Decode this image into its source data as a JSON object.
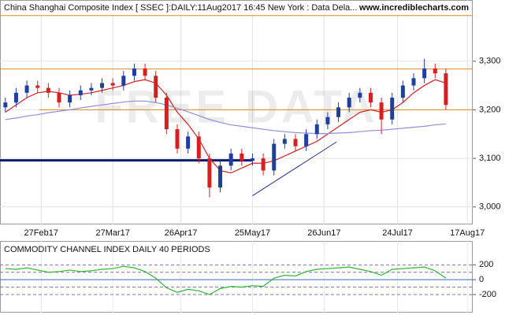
{
  "chart_data": [
    {
      "type": "candlestick",
      "title": "China Shanghai Composite Index [ SSEC ]:DAILY:11Aug2017 16:45 New York : Data Dela...",
      "source": "www.incrediblecharts.com",
      "watermark": "FREE DATA",
      "x": [
        -10,
        -7,
        -4,
        -1,
        2,
        5,
        8,
        11,
        14,
        17,
        20,
        23,
        26,
        29,
        32,
        35,
        38,
        41,
        44,
        47,
        50,
        53,
        56,
        59,
        62,
        65,
        68,
        71,
        74,
        77,
        80,
        83,
        86,
        89,
        92,
        95,
        98,
        101,
        104,
        107,
        110,
        113
      ],
      "open": [
        3205,
        3215,
        3235,
        3250,
        3245,
        3235,
        3215,
        3230,
        3240,
        3245,
        3255,
        3250,
        3270,
        3285,
        3270,
        3225,
        3160,
        3120,
        3145,
        3100,
        3040,
        3085,
        3110,
        3095,
        3100,
        3075,
        3130,
        3140,
        3125,
        3150,
        3170,
        3185,
        3205,
        3225,
        3235,
        3215,
        3180,
        3225,
        3250,
        3265,
        3285,
        3275
      ],
      "high": [
        3225,
        3245,
        3260,
        3260,
        3255,
        3245,
        3240,
        3250,
        3255,
        3265,
        3265,
        3280,
        3295,
        3295,
        3280,
        3235,
        3170,
        3155,
        3155,
        3110,
        3095,
        3120,
        3120,
        3110,
        3110,
        3140,
        3150,
        3150,
        3160,
        3180,
        3195,
        3215,
        3235,
        3245,
        3245,
        3225,
        3235,
        3260,
        3275,
        3305,
        3295,
        3285
      ],
      "low": [
        3195,
        3205,
        3225,
        3235,
        3225,
        3205,
        3205,
        3220,
        3230,
        3235,
        3240,
        3240,
        3260,
        3260,
        3215,
        3150,
        3110,
        3110,
        3090,
        3020,
        3030,
        3075,
        3085,
        3085,
        3065,
        3065,
        3120,
        3115,
        3115,
        3140,
        3160,
        3175,
        3195,
        3215,
        3205,
        3150,
        3170,
        3215,
        3240,
        3255,
        3265,
        3200
      ],
      "close": [
        3215,
        3235,
        3250,
        3245,
        3235,
        3215,
        3230,
        3240,
        3245,
        3255,
        3250,
        3270,
        3285,
        3270,
        3225,
        3160,
        3120,
        3145,
        3100,
        3040,
        3085,
        3110,
        3095,
        3100,
        3075,
        3130,
        3140,
        3125,
        3150,
        3170,
        3185,
        3205,
        3225,
        3235,
        3215,
        3180,
        3225,
        3250,
        3265,
        3285,
        3275,
        3210
      ],
      "up_color": "#1f3f9f",
      "down_color": "#d62020",
      "series": [
        {
          "color": "#d62020",
          "values": [
            3195,
            3210,
            3225,
            3235,
            3238,
            3235,
            3230,
            3232,
            3235,
            3240,
            3245,
            3250,
            3258,
            3262,
            3255,
            3230,
            3195,
            3170,
            3140,
            3100,
            3075,
            3070,
            3080,
            3090,
            3090,
            3095,
            3105,
            3115,
            3125,
            3135,
            3150,
            3165,
            3180,
            3195,
            3200,
            3195,
            3200,
            3215,
            3235,
            3250,
            3262,
            3255
          ]
        },
        {
          "color": "#8f8fd8",
          "values": [
            3180,
            3183,
            3187,
            3190,
            3194,
            3197,
            3200,
            3204,
            3207,
            3210,
            3213,
            3216,
            3218,
            3218,
            3215,
            3210,
            3203,
            3196,
            3188,
            3180,
            3174,
            3169,
            3166,
            3163,
            3160,
            3157,
            3155,
            3153,
            3152,
            3151,
            3151,
            3152,
            3153,
            3155,
            3157,
            3158,
            3160,
            3162,
            3164,
            3166,
            3169,
            3171
          ]
        }
      ],
      "hlines": [
        {
          "value": 3394,
          "color": "#e08a1e",
          "xlim": [
            -11.5,
            120.5
          ],
          "width": 1
        },
        {
          "value": 3284,
          "color": "#e08a1e",
          "xlim": [
            -11.5,
            120.5
          ],
          "width": 1
        },
        {
          "value": 3200,
          "color": "#e08a1e",
          "xlim": [
            -0.5,
            120.5
          ],
          "width": 1
        },
        {
          "value": 3096,
          "color": "#0d1a6e",
          "xlim": [
            -11.5,
            59
          ],
          "width": 3
        }
      ],
      "trendlines": [
        {
          "x": [
            59,
            82.5
          ],
          "y": [
            3023,
            3134
          ],
          "color": "#1f2f8f"
        }
      ],
      "xlim": [
        -11.5,
        120.5
      ],
      "ylim": [
        2964,
        3426
      ],
      "xticks": [
        {
          "value": 0,
          "label": "27Feb17"
        },
        {
          "value": 20,
          "label": "27Mar17"
        },
        {
          "value": 39,
          "label": "26Apr17"
        },
        {
          "value": 59,
          "label": "25May17"
        },
        {
          "value": 79,
          "label": "26Jun17"
        },
        {
          "value": 99.5,
          "label": "24Jul17"
        },
        {
          "value": 119,
          "label": "17Aug17"
        }
      ],
      "yticks": [
        {
          "value": 3000,
          "label": "3,000"
        },
        {
          "value": 3100,
          "label": "3,100"
        },
        {
          "value": 3200,
          "label": "3,200"
        },
        {
          "value": 3300,
          "label": "3,300"
        }
      ],
      "grid": true
    },
    {
      "type": "line",
      "title": "COMMODITY CHANNEL INDEX DAILY 40 PERIODS",
      "x": [
        -10,
        -7,
        -4,
        -1,
        2,
        5,
        8,
        11,
        14,
        17,
        20,
        23,
        26,
        29,
        32,
        35,
        38,
        41,
        44,
        47,
        50,
        53,
        56,
        59,
        62,
        65,
        68,
        71,
        74,
        77,
        80,
        83,
        86,
        89,
        92,
        95,
        98,
        101,
        104,
        107,
        110,
        113
      ],
      "series": [
        {
          "color": "#2fb52f",
          "values": [
            150,
            140,
            160,
            130,
            100,
            110,
            130,
            110,
            120,
            140,
            150,
            180,
            160,
            110,
            20,
            -110,
            -170,
            -130,
            -150,
            -200,
            -120,
            -90,
            -100,
            -80,
            -90,
            20,
            60,
            50,
            110,
            140,
            150,
            160,
            170,
            140,
            110,
            60,
            140,
            150,
            160,
            170,
            120,
            20
          ]
        }
      ],
      "levels": [
        -200,
        -100,
        100,
        200
      ],
      "xlim": [
        -11.5,
        120.5
      ],
      "ylim": [
        -444,
        522
      ],
      "yticks": [
        -200,
        0,
        200
      ],
      "grid": true
    }
  ]
}
